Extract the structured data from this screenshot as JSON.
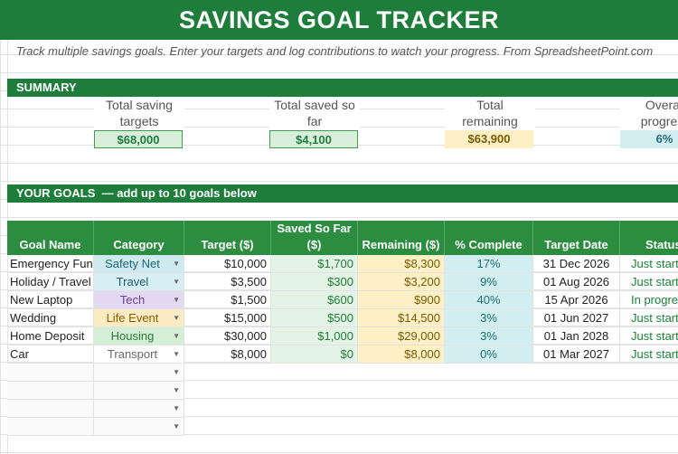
{
  "title": "SAVINGS GOAL TRACKER",
  "subtitle": "Track multiple savings goals. Enter your targets and log contributions to watch your progress. From SpreadsheetPoint.com",
  "summary": {
    "header": "SUMMARY",
    "items": [
      {
        "label1": "Total saving",
        "label2": "targets",
        "value": "$68,000"
      },
      {
        "label1": "Total saved so",
        "label2": "far",
        "value": "$4,100"
      },
      {
        "label1": "Total",
        "label2": "remaining",
        "value": "$63,900"
      },
      {
        "label1": "Overall",
        "label2": "progress",
        "value": "6%"
      }
    ]
  },
  "goals": {
    "header": "YOUR GOALS",
    "note": "— add up to 10 goals below",
    "columns": [
      "Goal Name",
      "Category",
      "Target ($)",
      "Saved So Far ($)",
      "Remaining ($)",
      "% Complete",
      "Target Date",
      "Status"
    ],
    "rows": [
      {
        "name": "Emergency Fund",
        "category": "Safety Net",
        "target": "$10,000",
        "saved": "$1,700",
        "remaining": "$8,300",
        "pct": "17%",
        "date": "31 Dec 2026",
        "status": "Just started"
      },
      {
        "name": "Holiday / Travel",
        "category": "Travel",
        "target": "$3,500",
        "saved": "$300",
        "remaining": "$3,200",
        "pct": "9%",
        "date": "01 Aug 2026",
        "status": "Just started"
      },
      {
        "name": "New Laptop",
        "category": "Tech",
        "target": "$1,500",
        "saved": "$600",
        "remaining": "$900",
        "pct": "40%",
        "date": "15 Apr 2026",
        "status": "In progress"
      },
      {
        "name": "Wedding",
        "category": "Life Event",
        "target": "$15,000",
        "saved": "$500",
        "remaining": "$14,500",
        "pct": "3%",
        "date": "01 Jun 2027",
        "status": "Just started"
      },
      {
        "name": "Home Deposit",
        "category": "Housing",
        "target": "$30,000",
        "saved": "$1,000",
        "remaining": "$29,000",
        "pct": "3%",
        "date": "01 Jan 2028",
        "status": "Just started"
      },
      {
        "name": "Car",
        "category": "Transport",
        "target": "$8,000",
        "saved": "$0",
        "remaining": "$8,000",
        "pct": "0%",
        "date": "01 Mar 2027",
        "status": "Just started"
      }
    ]
  }
}
